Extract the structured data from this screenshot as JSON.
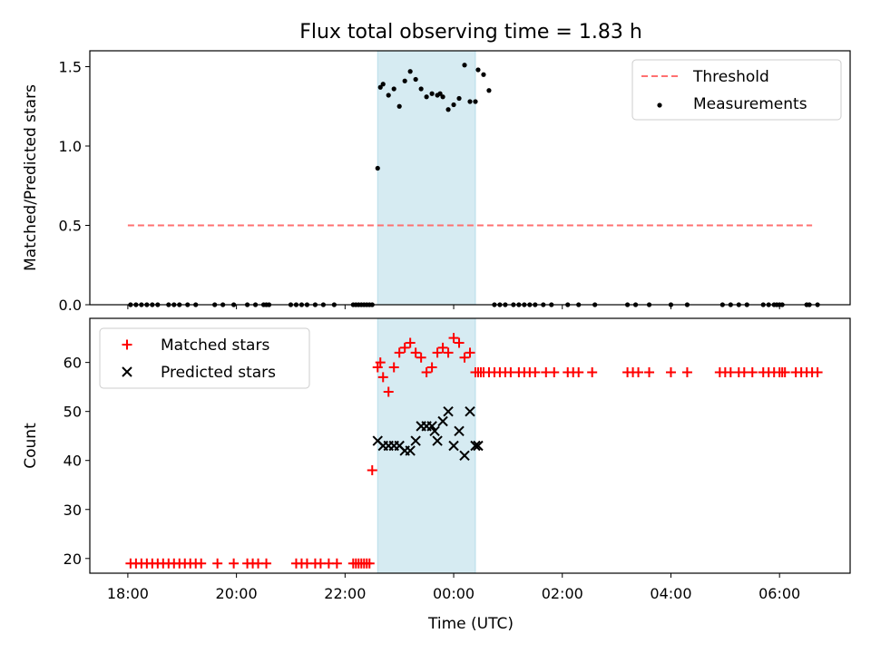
{
  "chart_data": {
    "title": "Flux total observing time = 1.83 h",
    "xlabel": "Time (UTC)",
    "x_unit": "hours since 18:00 UTC",
    "xlim": [
      -0.7,
      13.3
    ],
    "x_ticks": [
      {
        "value": 0,
        "label": "18:00"
      },
      {
        "value": 2,
        "label": "20:00"
      },
      {
        "value": 4,
        "label": "22:00"
      },
      {
        "value": 6,
        "label": "00:00"
      },
      {
        "value": 8,
        "label": "02:00"
      },
      {
        "value": 10,
        "label": "04:00"
      },
      {
        "value": 12,
        "label": "06:00"
      }
    ],
    "highlight_span": {
      "x0": 4.6,
      "x1": 6.4,
      "color": "#add8e6"
    },
    "colors": {
      "threshold": "#ff7070",
      "measurements": "#000000",
      "matched": "#ff0000",
      "predicted": "#000000"
    },
    "panels": [
      {
        "type": "scatter",
        "ylabel": "Matched/Predicted stars",
        "ylim": [
          0,
          1.6
        ],
        "y_ticks": [
          {
            "value": 0,
            "label": "0.0"
          },
          {
            "value": 0.5,
            "label": "0.5"
          },
          {
            "value": 1.0,
            "label": "1.0"
          },
          {
            "value": 1.5,
            "label": "1.5"
          }
        ],
        "legend_position": "top-right",
        "threshold": {
          "name": "Threshold",
          "y": 0.5,
          "x_range": [
            0,
            12.6
          ]
        },
        "series": [
          {
            "name": "Measurements",
            "marker": "dot",
            "x": [
              0.05,
              0.15,
              0.25,
              0.35,
              0.45,
              0.55,
              0.75,
              0.85,
              0.95,
              1.1,
              1.25,
              1.6,
              1.75,
              1.95,
              2.2,
              2.35,
              2.5,
              2.55,
              2.6,
              3.0,
              3.1,
              3.2,
              3.3,
              3.45,
              3.6,
              3.8,
              4.15,
              4.2,
              4.25,
              4.3,
              4.35,
              4.4,
              4.45,
              4.5,
              4.6,
              4.65,
              4.7,
              4.8,
              4.9,
              5.0,
              5.1,
              5.2,
              5.3,
              5.4,
              5.5,
              5.6,
              5.7,
              5.75,
              5.8,
              5.9,
              6.0,
              6.1,
              6.2,
              6.3,
              6.4,
              6.45,
              6.55,
              6.65,
              6.75,
              6.85,
              6.95,
              7.1,
              7.2,
              7.3,
              7.4,
              7.5,
              7.65,
              7.8,
              8.1,
              8.3,
              8.6,
              9.2,
              9.35,
              9.6,
              10.0,
              10.3,
              10.95,
              11.1,
              11.25,
              11.4,
              11.7,
              11.8,
              11.9,
              11.95,
              12.0,
              12.05,
              12.5,
              12.55,
              12.7
            ],
            "y": [
              0,
              0,
              0,
              0,
              0,
              0,
              0,
              0,
              0,
              0,
              0,
              0,
              0,
              0,
              0,
              0,
              0,
              0,
              0,
              0,
              0,
              0,
              0,
              0,
              0,
              0,
              0,
              0,
              0,
              0,
              0,
              0,
              0,
              0,
              0.86,
              1.37,
              1.39,
              1.32,
              1.36,
              1.25,
              1.41,
              1.47,
              1.42,
              1.36,
              1.31,
              1.33,
              1.32,
              1.33,
              1.31,
              1.23,
              1.26,
              1.3,
              1.51,
              1.28,
              1.28,
              1.48,
              1.45,
              1.35,
              0,
              0,
              0,
              0,
              0,
              0,
              0,
              0,
              0,
              0,
              0,
              0,
              0,
              0,
              0,
              0,
              0,
              0,
              0,
              0,
              0,
              0,
              0,
              0,
              0,
              0,
              0,
              0,
              0,
              0,
              0
            ]
          }
        ]
      },
      {
        "type": "scatter",
        "ylabel": "Count",
        "ylim": [
          17,
          69
        ],
        "y_ticks": [
          {
            "value": 20,
            "label": "20"
          },
          {
            "value": 30,
            "label": "30"
          },
          {
            "value": 40,
            "label": "40"
          },
          {
            "value": 50,
            "label": "50"
          },
          {
            "value": 60,
            "label": "60"
          }
        ],
        "legend_position": "top-left",
        "series": [
          {
            "name": "Matched stars",
            "marker": "plus",
            "x": [
              0.05,
              0.15,
              0.25,
              0.35,
              0.45,
              0.55,
              0.65,
              0.75,
              0.85,
              0.95,
              1.05,
              1.15,
              1.25,
              1.35,
              1.65,
              1.95,
              2.2,
              2.3,
              2.4,
              2.55,
              3.1,
              3.2,
              3.3,
              3.45,
              3.55,
              3.7,
              3.85,
              4.15,
              4.2,
              4.25,
              4.3,
              4.35,
              4.4,
              4.45,
              4.5,
              4.6,
              4.65,
              4.7,
              4.8,
              4.9,
              5.0,
              5.1,
              5.2,
              5.3,
              5.4,
              5.5,
              5.6,
              5.7,
              5.8,
              5.9,
              6.0,
              6.1,
              6.2,
              6.3,
              6.4,
              6.45,
              6.5,
              6.55,
              6.65,
              6.75,
              6.85,
              6.95,
              7.05,
              7.2,
              7.3,
              7.4,
              7.5,
              7.7,
              7.85,
              8.1,
              8.2,
              8.3,
              8.55,
              9.2,
              9.3,
              9.4,
              9.6,
              10.0,
              10.3,
              10.9,
              11.0,
              11.1,
              11.25,
              11.35,
              11.5,
              11.7,
              11.8,
              11.9,
              12.0,
              12.05,
              12.1,
              12.3,
              12.4,
              12.5,
              12.6,
              12.7
            ],
            "y": [
              19,
              19,
              19,
              19,
              19,
              19,
              19,
              19,
              19,
              19,
              19,
              19,
              19,
              19,
              19,
              19,
              19,
              19,
              19,
              19,
              19,
              19,
              19,
              19,
              19,
              19,
              19,
              19,
              19,
              19,
              19,
              19,
              19,
              19,
              38,
              59,
              60,
              57,
              54,
              59,
              62,
              63,
              64,
              62,
              61,
              58,
              59,
              62,
              63,
              62,
              65,
              64,
              61,
              62,
              58,
              58,
              58,
              58,
              58,
              58,
              58,
              58,
              58,
              58,
              58,
              58,
              58,
              58,
              58,
              58,
              58,
              58,
              58,
              58,
              58,
              58,
              58,
              58,
              58,
              58,
              58,
              58,
              58,
              58,
              58,
              58,
              58,
              58,
              58,
              58,
              58,
              58,
              58,
              58,
              58,
              58
            ]
          },
          {
            "name": "Predicted stars",
            "marker": "x",
            "x": [
              4.6,
              4.7,
              4.8,
              4.9,
              5.0,
              5.1,
              5.2,
              5.3,
              5.4,
              5.5,
              5.6,
              5.65,
              5.7,
              5.8,
              5.9,
              6.0,
              6.1,
              6.2,
              6.3,
              6.4,
              6.45
            ],
            "y": [
              44,
              43,
              43,
              43,
              43,
              42,
              42,
              44,
              47,
              47,
              47,
              46,
              44,
              48,
              50,
              43,
              46,
              41,
              50,
              43,
              43
            ]
          }
        ]
      }
    ]
  }
}
